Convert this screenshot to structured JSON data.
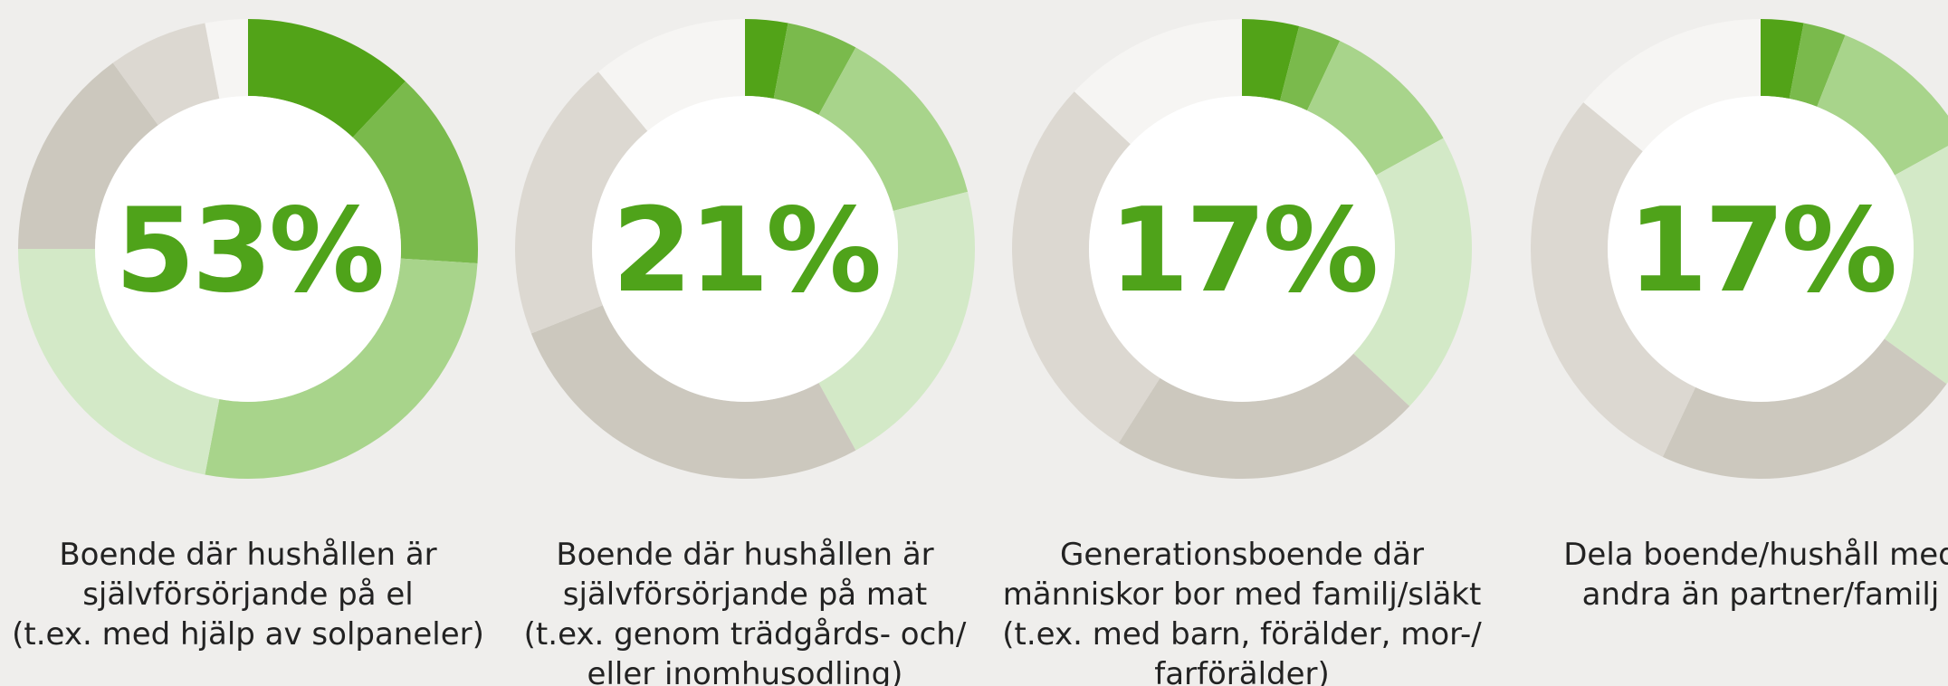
{
  "chart_data": [
    {
      "type": "donut",
      "center_label": "53%",
      "caption": [
        "Boende där hushållen är",
        "självförsörjande på el",
        "(t.ex. med hjälp av solpaneler)"
      ],
      "values": [
        12,
        14,
        27,
        22,
        15,
        7,
        3
      ],
      "colors": [
        "#52a318",
        "#7aba4c",
        "#a8d48b",
        "#d3e9c7",
        "#ccc8be",
        "#dcd8d1",
        "#f6f5f3"
      ]
    },
    {
      "type": "donut",
      "center_label": "21%",
      "caption": [
        "Boende där hushållen är",
        "självförsörjande på mat",
        "(t.ex. genom trädgårds- och/",
        "eller inomhusodling)"
      ],
      "values": [
        3,
        5,
        13,
        21,
        27,
        20,
        11
      ],
      "colors": [
        "#52a318",
        "#7aba4c",
        "#a8d48b",
        "#d3e9c7",
        "#ccc8be",
        "#dcd8d1",
        "#f6f5f3"
      ]
    },
    {
      "type": "donut",
      "center_label": "17%",
      "caption": [
        "Generationsboende där",
        "människor bor med familj/släkt",
        "(t.ex. med barn, förälder, mor-/",
        "farförälder)"
      ],
      "values": [
        4,
        3,
        10,
        20,
        22,
        28,
        13
      ],
      "colors": [
        "#52a318",
        "#7aba4c",
        "#a8d48b",
        "#d3e9c7",
        "#ccc8be",
        "#dcd8d1",
        "#f6f5f3"
      ]
    },
    {
      "type": "donut",
      "center_label": "17%",
      "caption": [
        "Dela boende/hushåll med",
        "andra än partner/familj"
      ],
      "values": [
        3,
        3,
        11,
        18,
        22,
        29,
        14
      ],
      "colors": [
        "#52a318",
        "#7aba4c",
        "#a8d48b",
        "#d3e9c7",
        "#ccc8be",
        "#dcd8d1",
        "#f6f5f3"
      ]
    }
  ]
}
